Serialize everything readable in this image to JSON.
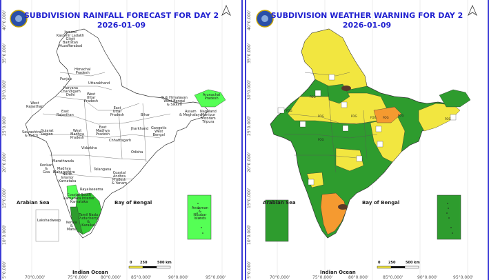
{
  "left": {
    "title": "SUBDIVISION RAINFALL FORECAST FOR DAY 2",
    "date": "2026-01-09",
    "seas": {
      "arabian": "Arabian Sea",
      "bengal": "Bay of Bengal",
      "ocean": "Indian Ocean"
    },
    "lat_labels": [
      "40°0.000'",
      "35°0.000'",
      "30°0.000'",
      "25°0.000'",
      "20°0.000'",
      "15°0.000'",
      "10°0.000'",
      "5°0.000'"
    ],
    "lon_labels": [
      "70°0.000'",
      "75°0.000'",
      "80°0.000'",
      "85°0.000'",
      "90°0.000'",
      "95°0.000'"
    ],
    "scale": [
      "0",
      "250",
      "500 km"
    ],
    "regions": {
      "jk": "Jammu\nKashmir Ladakh\nGilgit\nBaltistan\nMuzaffarabad",
      "hp": "Himachal\nPradesh",
      "punjab": "Punjab",
      "uk": "Uttarakhand",
      "hcd": "Haryana\nChandigarh\nDelhi",
      "wup": "West\nUttar\nPradesh",
      "wraj": "West\nRajasthan",
      "eraj": "East\nRajasthan",
      "eup": "East\nUttar\nPradesh",
      "bihar": "Bihar",
      "shwb": "Sub Himalayan\nWest Bengal\n& Sikkim",
      "arunachal": "Arunachal\nPradesh",
      "assam": "Assam\n& Meghalaya",
      "nmmt": "Nagaland\nManipur\nMizoram\nTripura",
      "saurashtra": "Saurashtra\n& Kutch",
      "gujarat": "Gujarat\nRegion",
      "wmp": "West\nMadhya\nPradesh",
      "emp": "East\nMadhya\nPradesh",
      "jharkhand": "Jharkhand",
      "gwb": "Gangetic\nWest\nBengal",
      "chhattisgarh": "Chhattisgarh",
      "odisha": "Odisha",
      "vidarbha": "Vidarbha",
      "marathwada": "Marathwada",
      "konkan": "Konkan\n&\nGoa",
      "mmaha": "Madhya\nMaharashtra",
      "telangana": "Telangana",
      "nik": "North\nInterior\nKarnataka",
      "capy": "Coastal\nAndhra\nPradesh\n& Yanam",
      "rayalaseema": "Rayalaseema",
      "coastkar": "Coastal South\nKarnataka Interior\nKarnataka",
      "tn": "Tamil Nadu\nPuducherry\n&\nKaraikal",
      "kerala": "Kerala\n&\nMahe",
      "lakshadweep": "Lakshadweep",
      "andaman": "Andaman\n&\nNicobar\nIslands"
    }
  },
  "right": {
    "title": "SUBDIVISION WEATHER WARNING FOR DAY 2",
    "date": "2026-01-09",
    "seas": {
      "arabian": "Arabian Sea",
      "bengal": "Bay of Bengal",
      "ocean": "Indian Ocean"
    },
    "lat_labels": [
      "40°0.000'",
      "35°0.000'",
      "30°0.000'",
      "25°0.000'",
      "20°0.000'",
      "15°0.000'",
      "10°0.000'",
      "5°0.000'"
    ],
    "lon_labels": [
      "70°0.000'",
      "75°0.000'",
      "80°0.000'",
      "85°0.000'",
      "90°0.000'",
      "95°0.000'"
    ],
    "scale": [
      "0",
      "250",
      "500 km"
    ],
    "fog_label": "FOG"
  },
  "colors": {
    "title": "#1f1fd0",
    "no_rain": "#ffffff",
    "light_rain": "#55ff55",
    "moderate_green": "#33cc33",
    "no_warning": "#2e9c2e",
    "yellow": "#f2e640",
    "orange": "#f59a30",
    "border": "#3b3bd6"
  }
}
